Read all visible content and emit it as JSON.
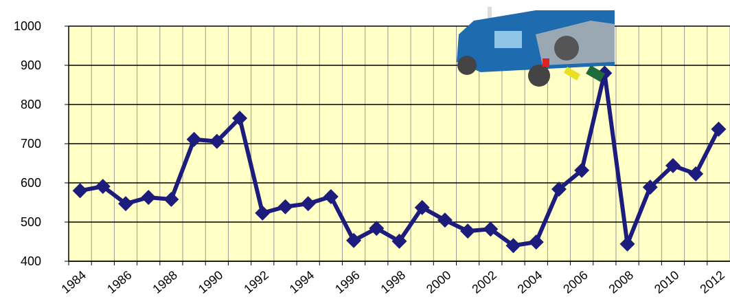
{
  "chart_data": {
    "type": "line",
    "categories": [
      "1984",
      null,
      "1986",
      null,
      "1988",
      null,
      "1990",
      null,
      "1992",
      null,
      "1994",
      null,
      "1996",
      null,
      "1998",
      null,
      "2000",
      null,
      "2002",
      null,
      "2004",
      null,
      "2006",
      null,
      "2008",
      null,
      "2010",
      null,
      "2012"
    ],
    "values": [
      580,
      591,
      547,
      563,
      558,
      711,
      706,
      765,
      523,
      539,
      547,
      565,
      453,
      484,
      451,
      537,
      505,
      477,
      482,
      440,
      449,
      584,
      632,
      880,
      444,
      589,
      644,
      623,
      737
    ],
    "color": "#1c1c7c",
    "ylim": [
      400,
      1000
    ],
    "yticks": [
      400,
      500,
      600,
      700,
      800,
      900,
      1000
    ],
    "grid": true
  }
}
